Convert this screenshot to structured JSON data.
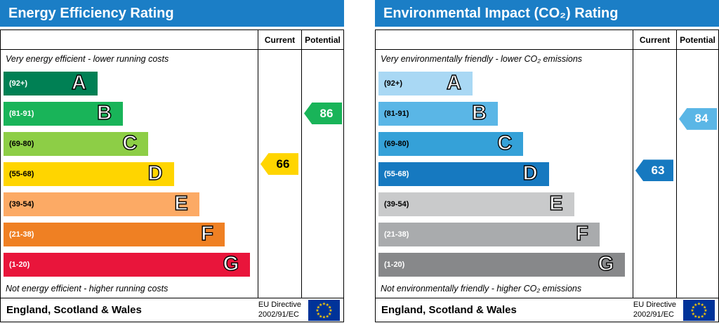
{
  "charts": [
    {
      "title": "Energy Efficiency Rating",
      "header_color": "#1b7ec6",
      "columns": {
        "current": "Current",
        "potential": "Potential"
      },
      "top_note": "Very energy efficient - lower running costs",
      "bottom_note": "Not energy efficient - higher running costs",
      "bands": [
        {
          "letter": "A",
          "range": "(92+)",
          "min": 92,
          "max": 100,
          "color": "#008054",
          "text_color": "#ffffff",
          "width_pct": 37
        },
        {
          "letter": "B",
          "range": "(81-91)",
          "min": 81,
          "max": 91,
          "color": "#19b459",
          "text_color": "#ffffff",
          "width_pct": 47
        },
        {
          "letter": "C",
          "range": "(69-80)",
          "min": 69,
          "max": 80,
          "color": "#8dce46",
          "text_color": "#000000",
          "width_pct": 57
        },
        {
          "letter": "D",
          "range": "(55-68)",
          "min": 55,
          "max": 68,
          "color": "#ffd500",
          "text_color": "#000000",
          "width_pct": 67
        },
        {
          "letter": "E",
          "range": "(39-54)",
          "min": 39,
          "max": 54,
          "color": "#fcaa65",
          "text_color": "#000000",
          "width_pct": 77
        },
        {
          "letter": "F",
          "range": "(21-38)",
          "min": 21,
          "max": 38,
          "color": "#ef8023",
          "text_color": "#ffffff",
          "width_pct": 87
        },
        {
          "letter": "G",
          "range": "(1-20)",
          "min": 1,
          "max": 20,
          "color": "#e9153b",
          "text_color": "#ffffff",
          "width_pct": 97
        }
      ],
      "current": {
        "value": 66,
        "row": 3,
        "color": "#ffd500",
        "text_color": "#000000"
      },
      "potential": {
        "value": 86,
        "row": 1,
        "color": "#19b459",
        "text_color": "#ffffff"
      },
      "footer": {
        "region": "England, Scotland & Wales",
        "directive_line1": "EU Directive",
        "directive_line2": "2002/91/EC"
      }
    },
    {
      "title": "Environmental Impact (CO₂) Rating",
      "header_color": "#1b7ec6",
      "columns": {
        "current": "Current",
        "potential": "Potential"
      },
      "top_note": "Very environmentally friendly - lower CO₂ emissions",
      "bottom_note": "Not environmentally friendly - higher CO₂ emissions",
      "bands": [
        {
          "letter": "A",
          "range": "(92+)",
          "min": 92,
          "max": 100,
          "color": "#a9d8f4",
          "text_color": "#000000",
          "width_pct": 37
        },
        {
          "letter": "B",
          "range": "(81-91)",
          "min": 81,
          "max": 91,
          "color": "#5ab6e6",
          "text_color": "#000000",
          "width_pct": 47
        },
        {
          "letter": "C",
          "range": "(69-80)",
          "min": 69,
          "max": 80,
          "color": "#35a1d8",
          "text_color": "#000000",
          "width_pct": 57
        },
        {
          "letter": "D",
          "range": "(55-68)",
          "min": 55,
          "max": 68,
          "color": "#1679c0",
          "text_color": "#ffffff",
          "width_pct": 67
        },
        {
          "letter": "E",
          "range": "(39-54)",
          "min": 39,
          "max": 54,
          "color": "#c9cacb",
          "text_color": "#000000",
          "width_pct": 77
        },
        {
          "letter": "F",
          "range": "(21-38)",
          "min": 21,
          "max": 38,
          "color": "#a9abad",
          "text_color": "#ffffff",
          "width_pct": 87
        },
        {
          "letter": "G",
          "range": "(1-20)",
          "min": 1,
          "max": 20,
          "color": "#87888a",
          "text_color": "#ffffff",
          "width_pct": 97
        }
      ],
      "current": {
        "value": 63,
        "row": 3,
        "color": "#1679c0",
        "text_color": "#ffffff"
      },
      "potential": {
        "value": 84,
        "row": 1,
        "color": "#5ab6e6",
        "text_color": "#ffffff"
      },
      "footer": {
        "region": "England, Scotland & Wales",
        "directive_line1": "EU Directive",
        "directive_line2": "2002/91/EC"
      }
    }
  ],
  "chart_data": [
    {
      "type": "bar",
      "title": "Energy Efficiency Rating",
      "categories": [
        "A (92+)",
        "B (81-91)",
        "C (69-80)",
        "D (55-68)",
        "E (39-54)",
        "F (21-38)",
        "G (1-20)"
      ],
      "band_widths_pct": [
        37,
        47,
        57,
        67,
        77,
        87,
        97
      ],
      "series": [
        {
          "name": "Current",
          "value": 66,
          "band": "D"
        },
        {
          "name": "Potential",
          "value": 86,
          "band": "B"
        }
      ],
      "scale": [
        1,
        100
      ],
      "annotations": [
        "Very energy efficient - lower running costs",
        "Not energy efficient - higher running costs"
      ],
      "region": "England, Scotland & Wales",
      "directive": "EU Directive 2002/91/EC",
      "legend_position": "columns-right"
    },
    {
      "type": "bar",
      "title": "Environmental Impact (CO₂) Rating",
      "categories": [
        "A (92+)",
        "B (81-91)",
        "C (69-80)",
        "D (55-68)",
        "E (39-54)",
        "F (21-38)",
        "G (1-20)"
      ],
      "band_widths_pct": [
        37,
        47,
        57,
        67,
        77,
        87,
        97
      ],
      "series": [
        {
          "name": "Current",
          "value": 63,
          "band": "D"
        },
        {
          "name": "Potential",
          "value": 84,
          "band": "B"
        }
      ],
      "scale": [
        1,
        100
      ],
      "annotations": [
        "Very environmentally friendly - lower CO₂ emissions",
        "Not environmentally friendly - higher CO₂ emissions"
      ],
      "region": "England, Scotland & Wales",
      "directive": "EU Directive 2002/91/EC",
      "legend_position": "columns-right"
    }
  ]
}
